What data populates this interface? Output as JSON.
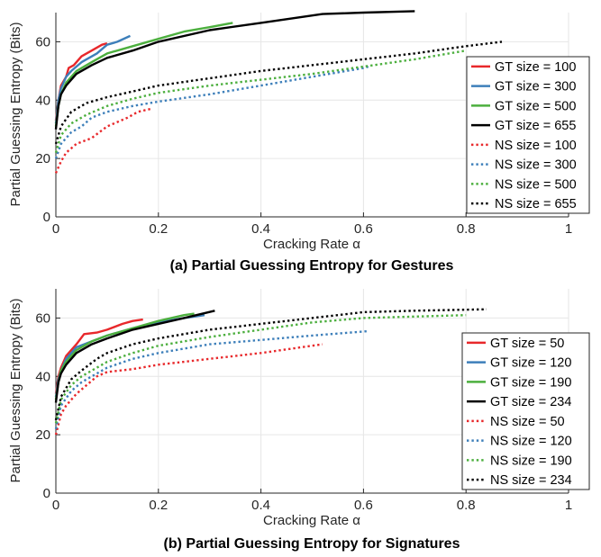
{
  "colors": {
    "red": "#e8282b",
    "blue": "#3d7fba",
    "green": "#4caf3e",
    "black": "#000000"
  },
  "chart_data": [
    {
      "type": "line",
      "caption": "(a) Partial Guessing Entropy for Gestures",
      "xlabel": "Cracking Rate α",
      "ylabel": "Partial Guessing Entropy (Bits)",
      "xlim": [
        0,
        1
      ],
      "ylim": [
        0,
        70
      ],
      "xticks": [
        0,
        0.2,
        0.4,
        0.6,
        0.8,
        1
      ],
      "xtick_labels": [
        "0",
        "0.2",
        "0.4",
        "0.6",
        "0.8",
        "1"
      ],
      "yticks": [
        0,
        20,
        40,
        60
      ],
      "ytick_labels": [
        "0",
        "20",
        "40",
        "60"
      ],
      "grid": true,
      "legend_position": "right",
      "series": [
        {
          "name": "GT size = 100",
          "color": "red",
          "style": "solid",
          "points": [
            [
              0,
              33
            ],
            [
              0.005,
              40
            ],
            [
              0.01,
              45
            ],
            [
              0.02,
              48
            ],
            [
              0.025,
              51
            ],
            [
              0.035,
              52
            ],
            [
              0.05,
              55
            ],
            [
              0.07,
              57
            ],
            [
              0.09,
              59
            ],
            [
              0.1,
              59.5
            ]
          ]
        },
        {
          "name": "GT size = 300",
          "color": "blue",
          "style": "solid",
          "points": [
            [
              0,
              32
            ],
            [
              0.005,
              40
            ],
            [
              0.01,
              44
            ],
            [
              0.02,
              48
            ],
            [
              0.03,
              50
            ],
            [
              0.05,
              53
            ],
            [
              0.08,
              56
            ],
            [
              0.1,
              59
            ],
            [
              0.12,
              60
            ],
            [
              0.145,
              62
            ]
          ]
        },
        {
          "name": "GT size = 500",
          "color": "green",
          "style": "solid",
          "points": [
            [
              0,
              31
            ],
            [
              0.005,
              38
            ],
            [
              0.01,
              42
            ],
            [
              0.02,
              46
            ],
            [
              0.04,
              50
            ],
            [
              0.07,
              53
            ],
            [
              0.1,
              56
            ],
            [
              0.15,
              58.5
            ],
            [
              0.2,
              61
            ],
            [
              0.25,
              63.5
            ],
            [
              0.3,
              65
            ],
            [
              0.345,
              66.5
            ]
          ]
        },
        {
          "name": "GT size = 655",
          "color": "black",
          "style": "solid",
          "points": [
            [
              0,
              30
            ],
            [
              0.005,
              38
            ],
            [
              0.01,
              42
            ],
            [
              0.02,
              45
            ],
            [
              0.04,
              49
            ],
            [
              0.07,
              52
            ],
            [
              0.1,
              54.5
            ],
            [
              0.15,
              57
            ],
            [
              0.2,
              60
            ],
            [
              0.3,
              64
            ],
            [
              0.4,
              66.5
            ],
            [
              0.52,
              69.5
            ],
            [
              0.6,
              70
            ],
            [
              0.7,
              70.5
            ]
          ]
        },
        {
          "name": "NS size = 100",
          "color": "red",
          "style": "dotted",
          "points": [
            [
              0,
              15
            ],
            [
              0.01,
              19
            ],
            [
              0.02,
              22
            ],
            [
              0.04,
              25
            ],
            [
              0.07,
              27
            ],
            [
              0.1,
              31
            ],
            [
              0.14,
              34
            ],
            [
              0.16,
              36
            ],
            [
              0.185,
              37
            ]
          ]
        },
        {
          "name": "NS size = 300",
          "color": "blue",
          "style": "dotted",
          "points": [
            [
              0,
              20
            ],
            [
              0.01,
              25
            ],
            [
              0.03,
              29
            ],
            [
              0.05,
              31
            ],
            [
              0.07,
              34
            ],
            [
              0.1,
              36
            ],
            [
              0.15,
              38
            ],
            [
              0.2,
              39.5
            ],
            [
              0.3,
              42
            ],
            [
              0.4,
              45
            ],
            [
              0.5,
              48
            ],
            [
              0.6,
              51
            ],
            [
              0.61,
              51.5
            ]
          ]
        },
        {
          "name": "NS size = 500",
          "color": "green",
          "style": "dotted",
          "points": [
            [
              0,
              22
            ],
            [
              0.01,
              28
            ],
            [
              0.03,
              32
            ],
            [
              0.06,
              35
            ],
            [
              0.1,
              38
            ],
            [
              0.15,
              40.5
            ],
            [
              0.2,
              42.5
            ],
            [
              0.3,
              45
            ],
            [
              0.4,
              47
            ],
            [
              0.5,
              49
            ],
            [
              0.6,
              51.5
            ],
            [
              0.7,
              54
            ],
            [
              0.8,
              57
            ]
          ]
        },
        {
          "name": "NS size = 655",
          "color": "black",
          "style": "dotted",
          "points": [
            [
              0,
              25
            ],
            [
              0.01,
              31
            ],
            [
              0.03,
              36
            ],
            [
              0.06,
              39
            ],
            [
              0.1,
              41
            ],
            [
              0.15,
              43
            ],
            [
              0.2,
              45
            ],
            [
              0.3,
              47.5
            ],
            [
              0.4,
              50
            ],
            [
              0.5,
              52
            ],
            [
              0.6,
              54
            ],
            [
              0.7,
              56
            ],
            [
              0.8,
              58.5
            ],
            [
              0.87,
              60
            ]
          ]
        }
      ]
    },
    {
      "type": "line",
      "caption": "(b) Partial Guessing Entropy for Signatures",
      "xlabel": "Cracking Rate α",
      "ylabel": "Partial Guessing Entropy (Bits)",
      "xlim": [
        0,
        1
      ],
      "ylim": [
        0,
        70
      ],
      "xticks": [
        0,
        0.2,
        0.4,
        0.6,
        0.8,
        1
      ],
      "xtick_labels": [
        "0",
        "0.2",
        "0.4",
        "0.6",
        "0.8",
        "1"
      ],
      "yticks": [
        0,
        20,
        40,
        60
      ],
      "ytick_labels": [
        "0",
        "20",
        "40",
        "60"
      ],
      "grid": true,
      "legend_position": "right",
      "series": [
        {
          "name": "GT size = 50",
          "color": "red",
          "style": "solid",
          "points": [
            [
              0,
              34
            ],
            [
              0.005,
              40
            ],
            [
              0.01,
              43
            ],
            [
              0.02,
              47
            ],
            [
              0.03,
              49
            ],
            [
              0.04,
              51
            ],
            [
              0.055,
              54.5
            ],
            [
              0.08,
              55
            ],
            [
              0.1,
              56
            ],
            [
              0.13,
              58
            ],
            [
              0.15,
              59
            ],
            [
              0.17,
              59.5
            ]
          ]
        },
        {
          "name": "GT size = 120",
          "color": "blue",
          "style": "solid",
          "points": [
            [
              0,
              33
            ],
            [
              0.005,
              39
            ],
            [
              0.01,
              42
            ],
            [
              0.02,
              46
            ],
            [
              0.04,
              50
            ],
            [
              0.07,
              52
            ],
            [
              0.1,
              54
            ],
            [
              0.15,
              56.5
            ],
            [
              0.2,
              58.5
            ],
            [
              0.25,
              60
            ],
            [
              0.29,
              61
            ]
          ]
        },
        {
          "name": "GT size = 190",
          "color": "green",
          "style": "solid",
          "points": [
            [
              0,
              32
            ],
            [
              0.005,
              38
            ],
            [
              0.01,
              42
            ],
            [
              0.02,
              45
            ],
            [
              0.04,
              49
            ],
            [
              0.07,
              52
            ],
            [
              0.1,
              54
            ],
            [
              0.15,
              56.5
            ],
            [
              0.2,
              59
            ],
            [
              0.25,
              61
            ],
            [
              0.27,
              61.5
            ]
          ]
        },
        {
          "name": "GT size = 234",
          "color": "black",
          "style": "solid",
          "points": [
            [
              0,
              31
            ],
            [
              0.005,
              38
            ],
            [
              0.01,
              41
            ],
            [
              0.02,
              44
            ],
            [
              0.04,
              48
            ],
            [
              0.07,
              51
            ],
            [
              0.1,
              53
            ],
            [
              0.15,
              56
            ],
            [
              0.2,
              58
            ],
            [
              0.25,
              60
            ],
            [
              0.31,
              62.5
            ]
          ]
        },
        {
          "name": "NS size = 50",
          "color": "red",
          "style": "dotted",
          "points": [
            [
              0,
              20
            ],
            [
              0.01,
              27
            ],
            [
              0.02,
              30
            ],
            [
              0.04,
              34
            ],
            [
              0.06,
              37
            ],
            [
              0.08,
              40
            ],
            [
              0.1,
              41.5
            ],
            [
              0.15,
              42.5
            ],
            [
              0.2,
              44
            ],
            [
              0.3,
              46
            ],
            [
              0.4,
              48
            ],
            [
              0.52,
              51
            ]
          ]
        },
        {
          "name": "NS size = 120",
          "color": "blue",
          "style": "dotted",
          "points": [
            [
              0,
              22
            ],
            [
              0.01,
              30
            ],
            [
              0.03,
              35
            ],
            [
              0.05,
              38
            ],
            [
              0.07,
              40
            ],
            [
              0.1,
              43
            ],
            [
              0.15,
              46
            ],
            [
              0.2,
              48
            ],
            [
              0.3,
              51
            ],
            [
              0.4,
              52.5
            ],
            [
              0.5,
              54
            ],
            [
              0.61,
              55.5
            ]
          ]
        },
        {
          "name": "NS size = 190",
          "color": "green",
          "style": "dotted",
          "points": [
            [
              0,
              24
            ],
            [
              0.01,
              32
            ],
            [
              0.03,
              37
            ],
            [
              0.05,
              40
            ],
            [
              0.08,
              43
            ],
            [
              0.1,
              45
            ],
            [
              0.15,
              48
            ],
            [
              0.2,
              50.5
            ],
            [
              0.3,
              53.5
            ],
            [
              0.4,
              56
            ],
            [
              0.5,
              58.5
            ],
            [
              0.6,
              60
            ],
            [
              0.7,
              60.5
            ],
            [
              0.8,
              61
            ]
          ]
        },
        {
          "name": "NS size = 234",
          "color": "black",
          "style": "dotted",
          "points": [
            [
              0,
              25
            ],
            [
              0.01,
              33
            ],
            [
              0.03,
              39
            ],
            [
              0.05,
              42
            ],
            [
              0.08,
              46
            ],
            [
              0.1,
              48
            ],
            [
              0.15,
              51
            ],
            [
              0.2,
              53
            ],
            [
              0.3,
              56
            ],
            [
              0.4,
              58
            ],
            [
              0.5,
              60
            ],
            [
              0.6,
              62
            ],
            [
              0.7,
              62.5
            ],
            [
              0.84,
              63
            ]
          ]
        }
      ]
    }
  ]
}
